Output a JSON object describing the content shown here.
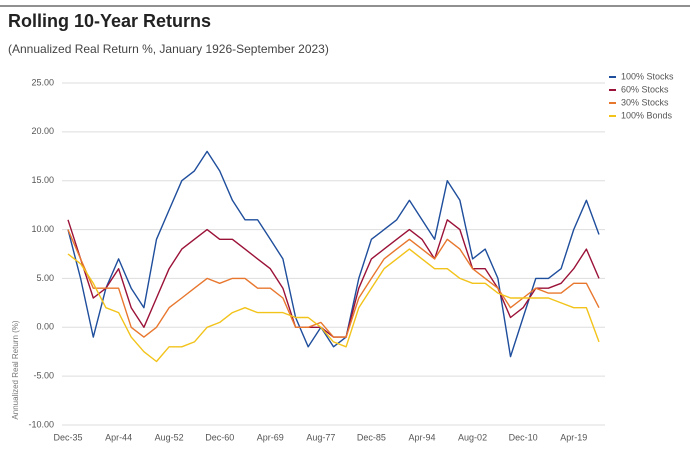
{
  "chart_data": {
    "type": "line",
    "title": "Rolling 10-Year Returns",
    "subtitle": "(Annualized Real Return %, January 1926-September 2023)",
    "y_label": "Annualized Real Return (%)",
    "categories": [
      "Dec-35",
      null,
      null,
      null,
      "Apr-44",
      null,
      null,
      null,
      "Aug-52",
      null,
      null,
      null,
      "Dec-60",
      null,
      null,
      null,
      "Apr-69",
      null,
      null,
      null,
      "Aug-77",
      null,
      null,
      null,
      "Dec-85",
      null,
      null,
      null,
      "Apr-94",
      null,
      null,
      null,
      "Aug-02",
      null,
      null,
      null,
      "Dec-10",
      null,
      null,
      null,
      "Apr-19",
      null,
      null
    ],
    "series": [
      {
        "name": "100% Stocks",
        "color": "#1f4e9c",
        "values": [
          10,
          5,
          -1,
          4,
          7,
          4,
          2,
          9,
          12,
          15,
          16,
          18,
          16,
          13,
          11,
          11,
          9,
          7,
          1,
          -2,
          0,
          -2,
          -1,
          5,
          9,
          10,
          11,
          13,
          11,
          9,
          15,
          13,
          7,
          8,
          5,
          -3,
          1,
          5,
          5,
          6,
          10,
          13,
          9.5
        ]
      },
      {
        "name": "60% Stocks",
        "color": "#9b1238",
        "values": [
          11,
          7,
          3,
          4,
          6,
          2,
          0,
          3,
          6,
          8,
          9,
          10,
          9,
          9,
          8,
          7,
          6,
          4,
          0,
          0,
          0,
          -1,
          -1,
          4,
          7,
          8,
          9,
          10,
          9,
          7,
          11,
          10,
          6,
          6,
          4,
          1,
          2,
          4,
          4,
          4.5,
          6,
          8,
          5
        ]
      },
      {
        "name": "30% Stocks",
        "color": "#e8772e",
        "values": [
          10,
          7,
          4,
          4,
          4,
          0,
          -1,
          0,
          2,
          3,
          4,
          5,
          4.5,
          5,
          5,
          4,
          4,
          3,
          0,
          0,
          0.5,
          -1,
          -1,
          3,
          5,
          7,
          8,
          9,
          8,
          7,
          9,
          8,
          6,
          5,
          4,
          2,
          3,
          4,
          3.5,
          3.5,
          4.5,
          4.5,
          2
        ]
      },
      {
        "name": "100% Bonds",
        "color": "#f2c31a",
        "values": [
          7.5,
          6.5,
          4.5,
          2,
          1.5,
          -1,
          -2.5,
          -3.5,
          -2,
          -2,
          -1.5,
          0,
          0.5,
          1.5,
          2,
          1.5,
          1.5,
          1.5,
          1,
          1,
          0,
          -1.5,
          -2,
          2,
          4,
          6,
          7,
          8,
          7,
          6,
          6,
          5,
          4.5,
          4.5,
          3.5,
          3,
          3,
          3,
          3,
          2.5,
          2,
          2,
          -1.5
        ]
      }
    ],
    "ylim": [
      -10,
      25
    ],
    "yticks": [
      {
        "value": -10,
        "label": "-10.00"
      },
      {
        "value": -5,
        "label": "-5.00"
      },
      {
        "value": 0,
        "label": "0.00"
      },
      {
        "value": 5,
        "label": "5.00"
      },
      {
        "value": 10,
        "label": "10.00"
      },
      {
        "value": 15,
        "label": "15.00"
      },
      {
        "value": 20,
        "label": "20.00"
      },
      {
        "value": 25,
        "label": "25.00"
      }
    ],
    "grid": true,
    "legend": "top-right"
  }
}
